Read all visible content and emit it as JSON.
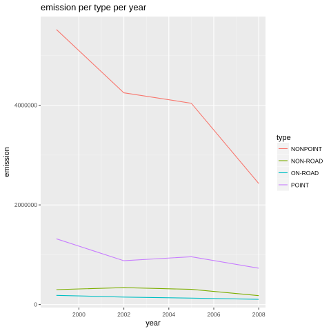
{
  "chart_data": {
    "type": "line",
    "title": "emission per type per year",
    "xlabel": "year",
    "ylabel": "emission",
    "x": [
      1999,
      2002,
      2005,
      2008
    ],
    "xlim": [
      1998.3,
      2008.3
    ],
    "ylim": [
      -60000,
      5780000
    ],
    "x_ticks": [
      2000,
      2002,
      2004,
      2006,
      2008
    ],
    "x_tick_labels": [
      "2000",
      "2002",
      "2004",
      "2006",
      "2008"
    ],
    "y_ticks": [
      0,
      2000000,
      4000000
    ],
    "y_tick_labels": [
      "0",
      "2000000",
      "4000000"
    ],
    "grid": true,
    "legend": {
      "title": "type",
      "position": "right"
    },
    "series": [
      {
        "name": "NONPOINT",
        "color": "#F8766D",
        "values": [
          5520000,
          4250000,
          4040000,
          2430000
        ]
      },
      {
        "name": "NON-ROAD",
        "color": "#7CAE00",
        "values": [
          300000,
          340000,
          305000,
          180000
        ]
      },
      {
        "name": "ON-ROAD",
        "color": "#00BFC4",
        "values": [
          185000,
          150000,
          130000,
          105000
        ]
      },
      {
        "name": "POINT",
        "color": "#C77CFF",
        "values": [
          1320000,
          880000,
          960000,
          730000
        ]
      }
    ]
  }
}
